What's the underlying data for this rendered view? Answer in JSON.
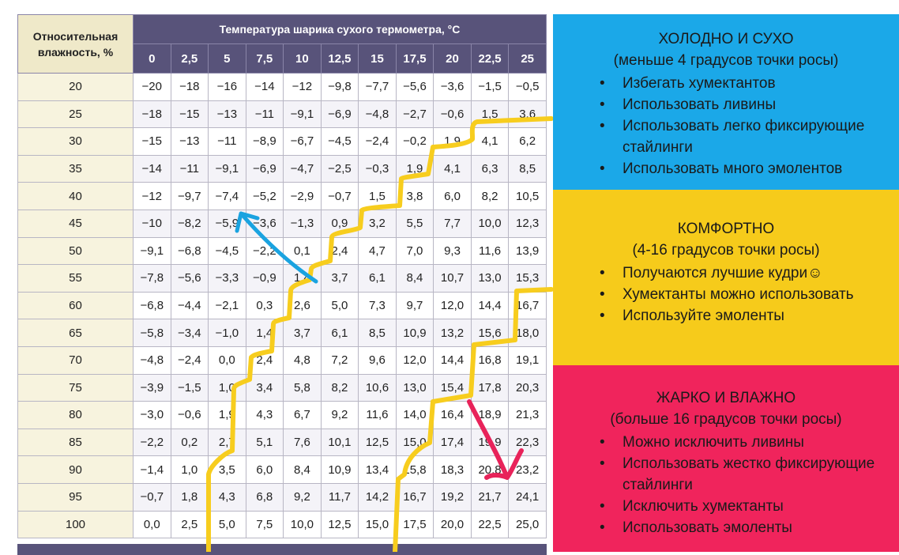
{
  "table": {
    "rh_header": "Относительная влажность, %",
    "temp_header": "Температура шарика сухого термометра, °C",
    "temps": [
      "0",
      "2,5",
      "5",
      "7,5",
      "10",
      "12,5",
      "15",
      "17,5",
      "20",
      "22,5",
      "25"
    ],
    "rows": [
      {
        "rh": "20",
        "values": [
          "−20",
          "−18",
          "−16",
          "−14",
          "−12",
          "−9,8",
          "−7,7",
          "−5,6",
          "−3,6",
          "−1,5",
          "−0,5"
        ]
      },
      {
        "rh": "25",
        "values": [
          "−18",
          "−15",
          "−13",
          "−11",
          "−9,1",
          "−6,9",
          "−4,8",
          "−2,7",
          "−0,6",
          "1,5",
          "3,6"
        ]
      },
      {
        "rh": "30",
        "values": [
          "−15",
          "−13",
          "−11",
          "−8,9",
          "−6,7",
          "−4,5",
          "−2,4",
          "−0,2",
          "1,9",
          "4,1",
          "6,2"
        ]
      },
      {
        "rh": "35",
        "values": [
          "−14",
          "−11",
          "−9,1",
          "−6,9",
          "−4,7",
          "−2,5",
          "−0,3",
          "1,9",
          "4,1",
          "6,3",
          "8,5"
        ]
      },
      {
        "rh": "40",
        "values": [
          "−12",
          "−9,7",
          "−7,4",
          "−5,2",
          "−2,9",
          "−0,7",
          "1,5",
          "3,8",
          "6,0",
          "8,2",
          "10,5"
        ]
      },
      {
        "rh": "45",
        "values": [
          "−10",
          "−8,2",
          "−5,9",
          "−3,6",
          "−1,3",
          "0,9",
          "3,2",
          "5,5",
          "7,7",
          "10,0",
          "12,3"
        ]
      },
      {
        "rh": "50",
        "values": [
          "−9,1",
          "−6,8",
          "−4,5",
          "−2,2",
          "0,1",
          "2,4",
          "4,7",
          "7,0",
          "9,3",
          "11,6",
          "13,9"
        ]
      },
      {
        "rh": "55",
        "values": [
          "−7,8",
          "−5,6",
          "−3,3",
          "−0,9",
          "1,4",
          "3,7",
          "6,1",
          "8,4",
          "10,7",
          "13,0",
          "15,3"
        ]
      },
      {
        "rh": "60",
        "values": [
          "−6,8",
          "−4,4",
          "−2,1",
          "0,3",
          "2,6",
          "5,0",
          "7,3",
          "9,7",
          "12,0",
          "14,4",
          "16,7"
        ]
      },
      {
        "rh": "65",
        "values": [
          "−5,8",
          "−3,4",
          "−1,0",
          "1,4",
          "3,7",
          "6,1",
          "8,5",
          "10,9",
          "13,2",
          "15,6",
          "18,0"
        ]
      },
      {
        "rh": "70",
        "values": [
          "−4,8",
          "−2,4",
          "0,0",
          "2,4",
          "4,8",
          "7,2",
          "9,6",
          "12,0",
          "14,4",
          "16,8",
          "19,1"
        ]
      },
      {
        "rh": "75",
        "values": [
          "−3,9",
          "−1,5",
          "1,0",
          "3,4",
          "5,8",
          "8,2",
          "10,6",
          "13,0",
          "15,4",
          "17,8",
          "20,3"
        ]
      },
      {
        "rh": "80",
        "values": [
          "−3,0",
          "−0,6",
          "1,9",
          "4,3",
          "6,7",
          "9,2",
          "11,6",
          "14,0",
          "16,4",
          "18,9",
          "21,3"
        ]
      },
      {
        "rh": "85",
        "values": [
          "−2,2",
          "0,2",
          "2,7",
          "5,1",
          "7,6",
          "10,1",
          "12,5",
          "15,0",
          "17,4",
          "19,9",
          "22,3"
        ]
      },
      {
        "rh": "90",
        "values": [
          "−1,4",
          "1,0",
          "3,5",
          "6,0",
          "8,4",
          "10,9",
          "13,4",
          "15,8",
          "18,3",
          "20,8",
          "23,2"
        ]
      },
      {
        "rh": "95",
        "values": [
          "−0,7",
          "1,8",
          "4,3",
          "6,8",
          "9,2",
          "11,7",
          "14,2",
          "16,7",
          "19,2",
          "21,7",
          "24,1"
        ]
      },
      {
        "rh": "100",
        "values": [
          "0,0",
          "2,5",
          "5,0",
          "7,5",
          "10,0",
          "12,5",
          "15,0",
          "17,5",
          "20,0",
          "22,5",
          "25,0"
        ]
      }
    ]
  },
  "panels": {
    "cold": {
      "title": "ХОЛОДНО И СУХО",
      "subtitle": "(меньше 4 градусов точки росы)",
      "items": [
        "Избегать хумектантов",
        "Использовать ливины",
        "Использовать легко фиксирующие стайлинги",
        "Использовать много эмолентов"
      ],
      "color": "#1ba8e8"
    },
    "comfort": {
      "title": "КОМФОРТНО",
      "subtitle": "(4-16 градусов точки росы)",
      "items": [
        "Получаются лучшие кудри☺",
        "Хумектанты можно использовать",
        "Используйте эмоленты"
      ],
      "color": "#f6cb1b"
    },
    "hot": {
      "title": "ЖАРКО И ВЛАЖНО",
      "subtitle": "(больше 16 градусов точки росы)",
      "items": [
        "Можно исключить ливины",
        "Использовать жестко фиксирующие стайлинги",
        "Исключить хумектанты",
        "Использовать эмоленты"
      ],
      "color": "#f0245c"
    }
  },
  "annotations": {
    "line_color": "#f7cd1e",
    "blue_arrow_color": "#1aa3e0",
    "pink_arrow_color": "#e8235a"
  }
}
